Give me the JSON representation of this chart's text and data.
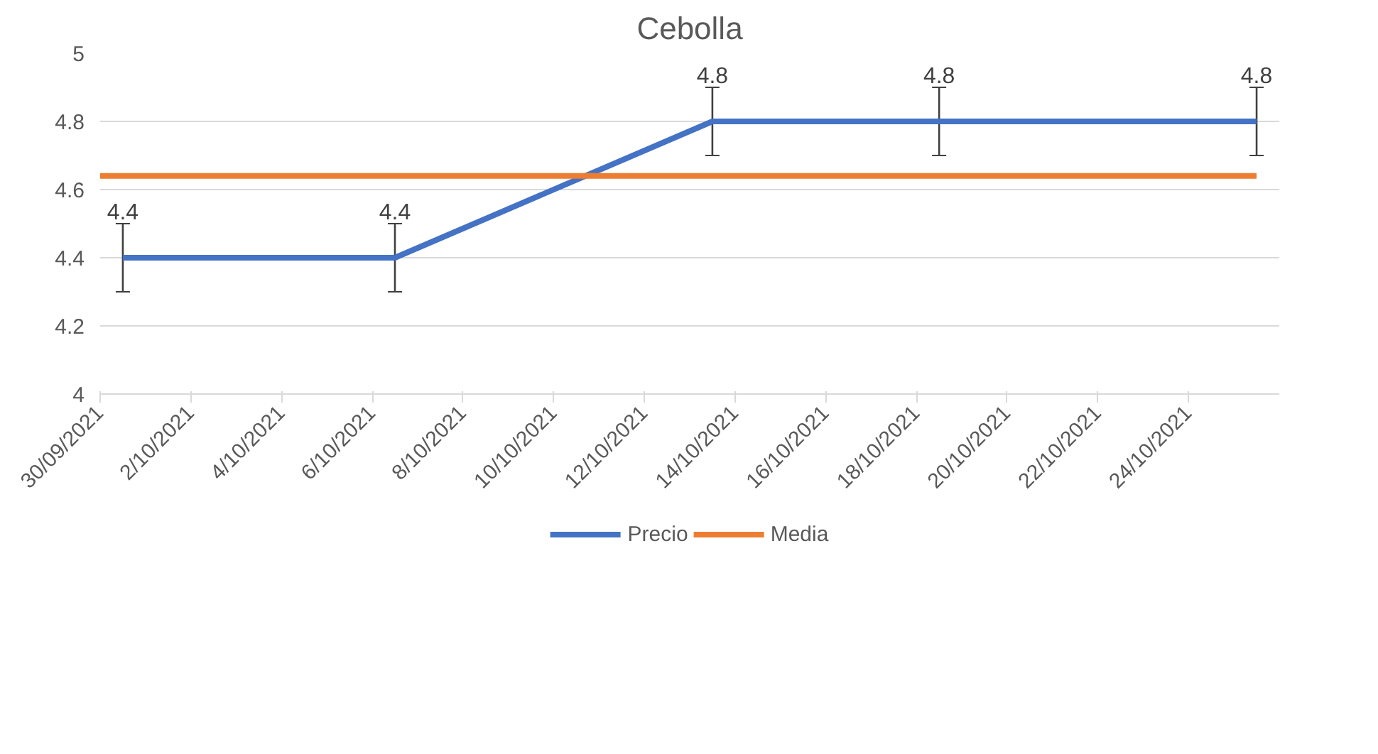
{
  "chart_data": {
    "type": "line",
    "title": "Cebolla",
    "series": [
      {
        "name": "Precio",
        "color": "#4472c4",
        "x": [
          "2021-09-30T12:00",
          "2021-10-06T12:00",
          "2021-10-13T12:00",
          "2021-10-18T12:00",
          "2021-10-25T12:00"
        ],
        "values": [
          4.4,
          4.4,
          4.8,
          4.8,
          4.8
        ],
        "errors": [
          0.1,
          0.1,
          0.1,
          0.1,
          0.1
        ],
        "value_labels": [
          "4.4",
          "4.4",
          "4.8",
          "4.8",
          "4.8"
        ]
      },
      {
        "name": "Media",
        "color": "#ed7d31",
        "x": [
          "2021-09-30",
          "2021-10-25T12:00"
        ],
        "values": [
          4.64,
          4.64
        ]
      }
    ],
    "xlim": [
      "2021-09-30",
      "2021-10-26"
    ],
    "xticks": [
      {
        "value": "2021-09-30",
        "label": "30/09/2021"
      },
      {
        "value": "2021-10-02",
        "label": "2/10/2021"
      },
      {
        "value": "2021-10-04",
        "label": "4/10/2021"
      },
      {
        "value": "2021-10-06",
        "label": "6/10/2021"
      },
      {
        "value": "2021-10-08",
        "label": "8/10/2021"
      },
      {
        "value": "2021-10-10",
        "label": "10/10/2021"
      },
      {
        "value": "2021-10-12",
        "label": "12/10/2021"
      },
      {
        "value": "2021-10-14",
        "label": "14/10/2021"
      },
      {
        "value": "2021-10-16",
        "label": "16/10/2021"
      },
      {
        "value": "2021-10-18",
        "label": "18/10/2021"
      },
      {
        "value": "2021-10-20",
        "label": "20/10/2021"
      },
      {
        "value": "2021-10-22",
        "label": "22/10/2021"
      },
      {
        "value": "2021-10-24",
        "label": "24/10/2021"
      }
    ],
    "ylim": [
      4,
      5
    ],
    "yticks": [
      4,
      4.2,
      4.4,
      4.6,
      4.8,
      5
    ],
    "grid": "y",
    "legend": "bottom",
    "marker": "none",
    "line_style": "solid"
  }
}
